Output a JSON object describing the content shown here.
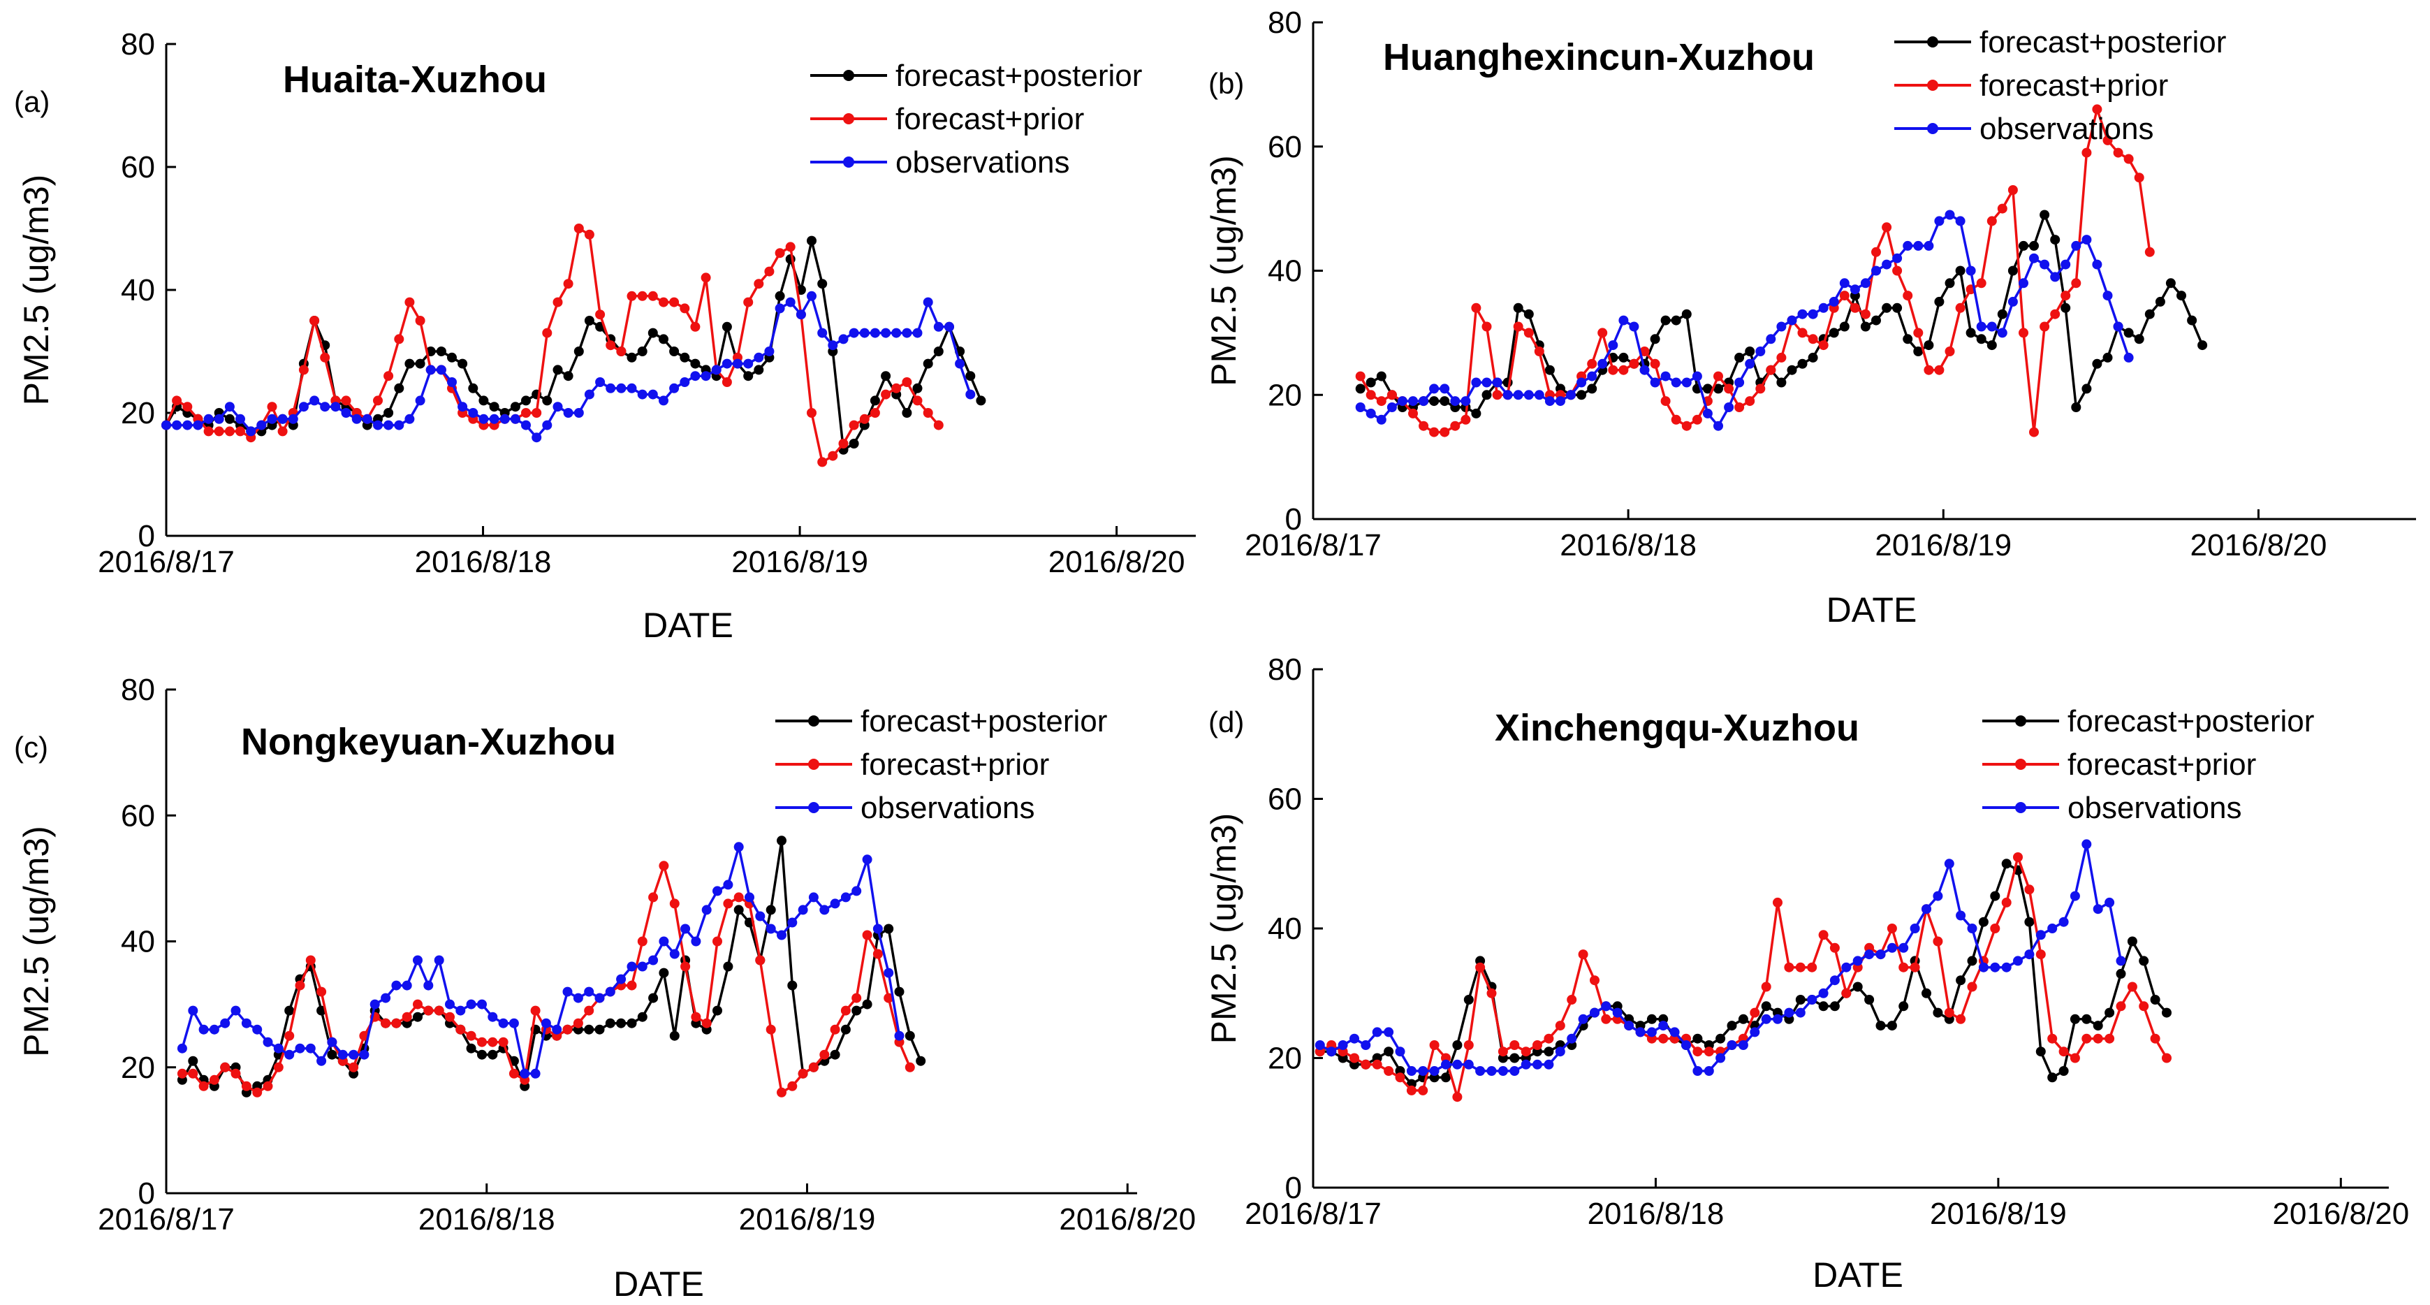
{
  "colors": {
    "forecast_posterior": "#000000",
    "forecast_prior": "#ee1111",
    "observations": "#1111ee",
    "axis": "#000000"
  },
  "chart_data": [
    {
      "panel": "(a)",
      "type": "line",
      "title": "Huaita-Xuzhou",
      "xlabel": "DATE",
      "ylabel": "PM2.5 (ug/m3)",
      "ylim": [
        0,
        80
      ],
      "yticks": [
        0,
        20,
        40,
        60,
        80
      ],
      "xlim": [
        0,
        3.25
      ],
      "xticks": [
        0,
        1,
        2,
        3
      ],
      "xticklabels": [
        "2016/8/17",
        "2016/8/18",
        "2016/8/19",
        "2016/8/20"
      ],
      "legend_position": "top-right",
      "x_start": 0,
      "x_step": 0.0334,
      "series": [
        {
          "name": "forecast+posterior",
          "color_key": "forecast_posterior",
          "values": [
            18,
            21,
            20,
            19,
            18,
            20,
            19,
            18,
            17,
            17,
            18,
            19,
            18,
            28,
            35,
            31,
            22,
            21,
            20,
            18,
            19,
            20,
            24,
            28,
            28,
            30,
            30,
            29,
            28,
            24,
            22,
            21,
            20,
            21,
            22,
            23,
            22,
            27,
            26,
            30,
            35,
            34,
            32,
            30,
            29,
            30,
            33,
            32,
            30,
            29,
            28,
            27,
            26,
            34,
            28,
            26,
            27,
            29,
            39,
            45,
            40,
            48,
            41,
            30,
            14,
            15,
            18,
            22,
            26,
            23,
            20,
            24,
            28,
            30,
            34,
            30,
            26,
            22
          ]
        },
        {
          "name": "forecast+prior",
          "color_key": "forecast_prior",
          "values": [
            18,
            22,
            21,
            19,
            17,
            17,
            17,
            17,
            16,
            18,
            21,
            17,
            20,
            27,
            35,
            29,
            22,
            22,
            20,
            19,
            22,
            26,
            32,
            38,
            35,
            27,
            27,
            24,
            20,
            19,
            18,
            18,
            19,
            19,
            20,
            20,
            33,
            38,
            41,
            50,
            49,
            36,
            31,
            30,
            39,
            39,
            39,
            38,
            38,
            37,
            34,
            42,
            27,
            25,
            29,
            38,
            41,
            43,
            46,
            47,
            36,
            20,
            12,
            13,
            15,
            18,
            19,
            20,
            23,
            24,
            25,
            22,
            20,
            18
          ]
        },
        {
          "name": "observations",
          "color_key": "observations",
          "values": [
            18,
            18,
            18,
            18,
            19,
            19,
            21,
            19,
            17,
            18,
            19,
            19,
            19,
            21,
            22,
            21,
            21,
            20,
            19,
            19,
            18,
            18,
            18,
            19,
            22,
            27,
            27,
            25,
            21,
            20,
            19,
            19,
            19,
            19,
            18,
            16,
            18,
            21,
            20,
            20,
            23,
            25,
            24,
            24,
            24,
            23,
            23,
            22,
            24,
            25,
            26,
            26,
            27,
            28,
            28,
            28,
            29,
            30,
            37,
            38,
            36,
            39,
            33,
            31,
            32,
            33,
            33,
            33,
            33,
            33,
            33,
            33,
            38,
            34,
            34,
            28,
            23
          ]
        }
      ]
    },
    {
      "panel": "(b)",
      "type": "line",
      "title": "Huanghexincun-Xuzhou",
      "xlabel": "DATE",
      "ylabel": "PM2.5 (ug/m3)",
      "ylim": [
        0,
        80
      ],
      "yticks": [
        0,
        20,
        40,
        60,
        80
      ],
      "xlim": [
        0,
        3.5
      ],
      "xticks": [
        0,
        1,
        2,
        3
      ],
      "xticklabels": [
        "2016/8/17",
        "2016/8/18",
        "2016/8/19",
        "2016/8/20"
      ],
      "legend_position": "top-right",
      "x_start": 0.15,
      "x_step": 0.0334,
      "series": [
        {
          "name": "forecast+posterior",
          "color_key": "forecast_posterior",
          "values": [
            21,
            22,
            23,
            20,
            18,
            18,
            19,
            19,
            19,
            18,
            18,
            17,
            20,
            22,
            22,
            34,
            33,
            28,
            24,
            21,
            20,
            20,
            21,
            24,
            26,
            26,
            25,
            25,
            29,
            32,
            32,
            33,
            21,
            21,
            21,
            22,
            26,
            27,
            22,
            24,
            22,
            24,
            25,
            26,
            29,
            30,
            31,
            36,
            31,
            32,
            34,
            34,
            29,
            27,
            28,
            35,
            38,
            40,
            30,
            29,
            28,
            33,
            40,
            44,
            44,
            49,
            45,
            34,
            18,
            21,
            25,
            26,
            31,
            30,
            29,
            33,
            35,
            38,
            36,
            32,
            28
          ]
        },
        {
          "name": "forecast+prior",
          "color_key": "forecast_prior",
          "values": [
            23,
            20,
            19,
            20,
            19,
            17,
            15,
            14,
            14,
            15,
            16,
            34,
            31,
            20,
            20,
            31,
            30,
            27,
            20,
            20,
            20,
            23,
            25,
            30,
            24,
            24,
            25,
            27,
            25,
            19,
            16,
            15,
            16,
            19,
            23,
            21,
            18,
            19,
            21,
            24,
            26,
            32,
            30,
            29,
            28,
            34,
            36,
            34,
            33,
            43,
            47,
            40,
            36,
            30,
            24,
            24,
            27,
            34,
            37,
            38,
            48,
            50,
            53,
            30,
            14,
            31,
            33,
            36,
            38,
            59,
            66,
            61,
            59,
            58,
            55,
            43
          ]
        },
        {
          "name": "observations",
          "color_key": "observations",
          "values": [
            18,
            17,
            16,
            18,
            19,
            19,
            19,
            21,
            21,
            19,
            19,
            22,
            22,
            22,
            20,
            20,
            20,
            20,
            19,
            19,
            20,
            22,
            23,
            25,
            28,
            32,
            31,
            24,
            22,
            23,
            22,
            22,
            23,
            17,
            15,
            18,
            22,
            25,
            27,
            29,
            31,
            32,
            33,
            33,
            34,
            35,
            38,
            37,
            38,
            40,
            41,
            42,
            44,
            44,
            44,
            48,
            49,
            48,
            40,
            31,
            31,
            30,
            35,
            38,
            42,
            41,
            39,
            41,
            44,
            45,
            41,
            36,
            31,
            26
          ]
        }
      ]
    },
    {
      "panel": "(c)",
      "type": "line",
      "title": "Nongkeyuan-Xuzhou",
      "xlabel": "DATE",
      "ylabel": "PM2.5 (ug/m3)",
      "ylim": [
        0,
        80
      ],
      "yticks": [
        0,
        20,
        40,
        60,
        80
      ],
      "xlim": [
        0,
        3.03
      ],
      "xticks": [
        0,
        1,
        2,
        3
      ],
      "xticklabels": [
        "2016/8/17",
        "2016/8/18",
        "2016/8/19",
        "2016/8/20"
      ],
      "legend_position": "top-right",
      "x_start": 0.05,
      "x_step": 0.0334,
      "series": [
        {
          "name": "forecast+posterior",
          "color_key": "forecast_posterior",
          "values": [
            18,
            21,
            18,
            17,
            20,
            20,
            16,
            17,
            18,
            22,
            29,
            34,
            36,
            29,
            22,
            21,
            19,
            23,
            29,
            27,
            27,
            27,
            28,
            29,
            29,
            27,
            26,
            23,
            22,
            22,
            23,
            21,
            17,
            26,
            25,
            25,
            26,
            26,
            26,
            26,
            27,
            27,
            27,
            28,
            31,
            35,
            25,
            37,
            27,
            26,
            29,
            36,
            45,
            43,
            37,
            45,
            56,
            33,
            19,
            20,
            21,
            22,
            26,
            29,
            30,
            41,
            42,
            32,
            25,
            21
          ]
        },
        {
          "name": "forecast+prior",
          "color_key": "forecast_prior",
          "values": [
            19,
            19,
            17,
            18,
            20,
            19,
            17,
            16,
            17,
            20,
            25,
            33,
            37,
            32,
            24,
            21,
            20,
            25,
            28,
            27,
            27,
            28,
            30,
            29,
            29,
            28,
            26,
            25,
            24,
            24,
            24,
            19,
            18,
            29,
            26,
            25,
            26,
            27,
            29,
            31,
            32,
            33,
            33,
            40,
            47,
            52,
            46,
            36,
            28,
            27,
            40,
            46,
            47,
            46,
            37,
            26,
            16,
            17,
            19,
            20,
            22,
            26,
            29,
            31,
            41,
            38,
            31,
            24,
            20
          ]
        },
        {
          "name": "observations",
          "color_key": "observations",
          "values": [
            23,
            29,
            26,
            26,
            27,
            29,
            27,
            26,
            24,
            23,
            22,
            23,
            23,
            21,
            24,
            22,
            22,
            22,
            30,
            31,
            33,
            33,
            37,
            33,
            37,
            30,
            29,
            30,
            30,
            28,
            27,
            27,
            19,
            19,
            27,
            26,
            32,
            31,
            32,
            31,
            32,
            34,
            36,
            36,
            37,
            40,
            38,
            42,
            40,
            45,
            48,
            49,
            55,
            47,
            44,
            42,
            41,
            43,
            45,
            47,
            45,
            46,
            47,
            48,
            53,
            42,
            35,
            25
          ]
        }
      ]
    },
    {
      "panel": "(d)",
      "type": "line",
      "title": "Xinchengqu-Xuzhou",
      "xlabel": "DATE",
      "ylabel": "PM2.5 (ug/m3)",
      "ylim": [
        0,
        80
      ],
      "yticks": [
        0,
        20,
        40,
        60,
        80
      ],
      "xlim": [
        0,
        3.14
      ],
      "xticks": [
        0,
        1,
        2,
        3
      ],
      "xticklabels": [
        "2016/8/17",
        "2016/8/18",
        "2016/8/19",
        "2016/8/20"
      ],
      "legend_position": "top-right",
      "x_start": 0.02,
      "x_step": 0.0334,
      "series": [
        {
          "name": "forecast+posterior",
          "color_key": "forecast_posterior",
          "values": [
            21,
            21,
            20,
            19,
            19,
            20,
            21,
            18,
            16,
            17,
            17,
            17,
            22,
            29,
            35,
            31,
            20,
            20,
            20,
            21,
            21,
            22,
            22,
            25,
            27,
            28,
            28,
            26,
            25,
            26,
            26,
            23,
            22,
            23,
            22,
            23,
            25,
            26,
            25,
            28,
            27,
            26,
            29,
            29,
            28,
            28,
            30,
            31,
            29,
            25,
            25,
            28,
            35,
            30,
            27,
            26,
            32,
            35,
            41,
            45,
            50,
            49,
            41,
            21,
            17,
            18,
            26,
            26,
            25,
            27,
            33,
            38,
            35,
            29,
            27
          ]
        },
        {
          "name": "forecast+prior",
          "color_key": "forecast_prior",
          "values": [
            21,
            22,
            21,
            20,
            19,
            19,
            18,
            17,
            15,
            15,
            22,
            20,
            14,
            22,
            34,
            30,
            21,
            22,
            21,
            22,
            23,
            25,
            29,
            36,
            32,
            26,
            26,
            25,
            24,
            23,
            23,
            23,
            23,
            21,
            21,
            21,
            22,
            23,
            27,
            31,
            44,
            34,
            34,
            34,
            39,
            37,
            30,
            34,
            37,
            36,
            40,
            34,
            34,
            43,
            38,
            27,
            26,
            31,
            35,
            40,
            44,
            51,
            46,
            36,
            23,
            21,
            20,
            23,
            23,
            23,
            28,
            31,
            28,
            23,
            20
          ]
        },
        {
          "name": "observations",
          "color_key": "observations",
          "values": [
            22,
            21,
            22,
            23,
            22,
            24,
            24,
            21,
            18,
            18,
            18,
            19,
            19,
            19,
            18,
            18,
            18,
            18,
            19,
            19,
            19,
            21,
            23,
            26,
            27,
            28,
            27,
            25,
            24,
            24,
            25,
            24,
            22,
            18,
            18,
            20,
            22,
            22,
            24,
            26,
            26,
            27,
            27,
            29,
            30,
            32,
            34,
            35,
            36,
            36,
            37,
            37,
            40,
            43,
            45,
            50,
            42,
            40,
            34,
            34,
            34,
            35,
            36,
            39,
            40,
            41,
            45,
            53,
            43,
            44,
            35
          ]
        }
      ]
    }
  ]
}
